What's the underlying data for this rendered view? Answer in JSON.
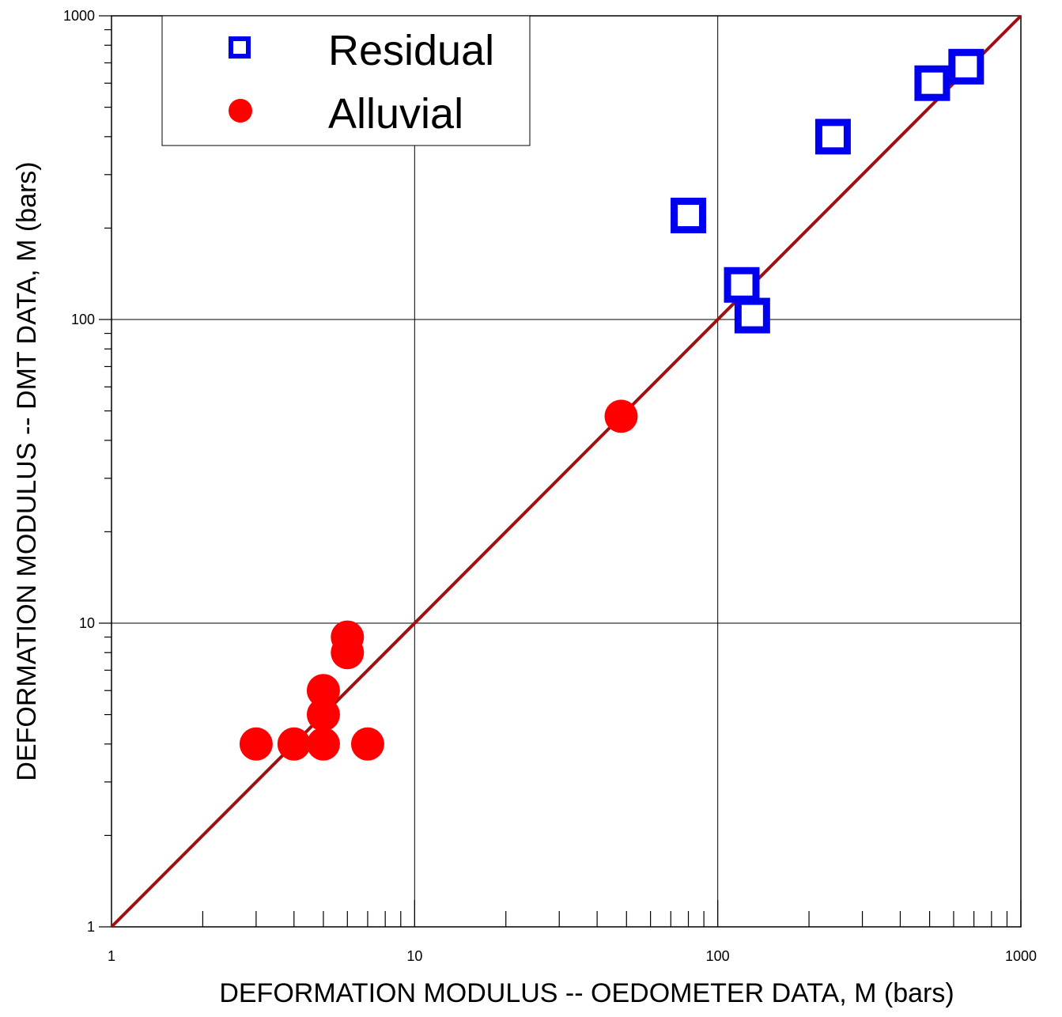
{
  "chart_data": {
    "type": "scatter",
    "xscale": "log",
    "yscale": "log",
    "xlim": [
      1,
      1000
    ],
    "ylim": [
      1,
      1000
    ],
    "xlabel": "DEFORMATION MODULUS -- OEDOMETER DATA, M (bars)",
    "ylabel": "DEFORMATION MODULUS -- DMT DATA, M (bars)",
    "xticks": [
      "1",
      "10",
      "100",
      "1000"
    ],
    "yticks": [
      "1",
      "10",
      "100",
      "1000"
    ],
    "grid": true,
    "legend_position": "top-left",
    "series": [
      {
        "name": "Residual",
        "marker": "open-square",
        "color": "#0000ee",
        "points": [
          {
            "x": 80,
            "y": 220
          },
          {
            "x": 120,
            "y": 130
          },
          {
            "x": 130,
            "y": 103
          },
          {
            "x": 240,
            "y": 400
          },
          {
            "x": 510,
            "y": 600
          },
          {
            "x": 660,
            "y": 680
          }
        ]
      },
      {
        "name": "Alluvial",
        "marker": "filled-circle",
        "color": "#ff0000",
        "points": [
          {
            "x": 3,
            "y": 4
          },
          {
            "x": 4,
            "y": 4
          },
          {
            "x": 5,
            "y": 4
          },
          {
            "x": 7,
            "y": 4
          },
          {
            "x": 5,
            "y": 5
          },
          {
            "x": 5,
            "y": 6
          },
          {
            "x": 6,
            "y": 8
          },
          {
            "x": 6,
            "y": 9
          },
          {
            "x": 48,
            "y": 48
          }
        ]
      }
    ],
    "reference_line": {
      "type": "1:1",
      "from": [
        1,
        1
      ],
      "to": [
        1000,
        1000
      ],
      "color": "#a01010"
    }
  }
}
